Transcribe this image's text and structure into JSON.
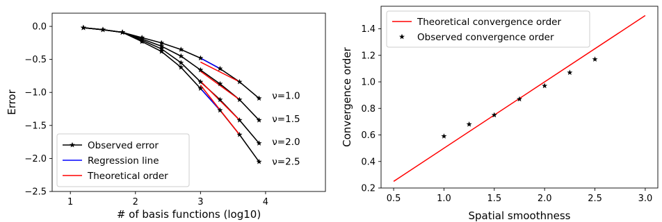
{
  "chart_data": [
    {
      "type": "line",
      "xlabel": "# of basis functions (log10)",
      "ylabel": "Error",
      "xlim": [
        0.72,
        4.92
      ],
      "ylim": [
        -2.5,
        0.2
      ],
      "xticks": [
        1,
        2,
        3,
        4
      ],
      "yticks": [
        0.0,
        -0.5,
        -1.0,
        -1.5,
        -2.0,
        -2.5
      ],
      "xtick_labels": [
        "1",
        "2",
        "3",
        "4"
      ],
      "ytick_labels": [
        "0.0",
        "−0.5",
        "−1.0",
        "−1.5",
        "−2.0",
        "−2.5"
      ],
      "grid": false,
      "legend_position": "lower-left",
      "legend": [
        "Observed error",
        "Regression line",
        "Theoretical order"
      ],
      "colors": {
        "observed": "#000000",
        "regression": "#0000ff",
        "theoretical": "#ff0000"
      },
      "observed": [
        {
          "label": "ν=1.0",
          "x": [
            1.2,
            1.5,
            1.8,
            2.1,
            2.4,
            2.7,
            3.0,
            3.3,
            3.6,
            3.9
          ],
          "y": [
            -0.02,
            -0.05,
            -0.09,
            -0.17,
            -0.25,
            -0.35,
            -0.48,
            -0.64,
            -0.84,
            -1.09
          ]
        },
        {
          "label": "ν=1.5",
          "x": [
            1.2,
            1.5,
            1.8,
            2.1,
            2.4,
            2.7,
            3.0,
            3.3,
            3.6,
            3.9
          ],
          "y": [
            -0.02,
            -0.05,
            -0.09,
            -0.19,
            -0.3,
            -0.45,
            -0.66,
            -0.87,
            -1.11,
            -1.42
          ]
        },
        {
          "label": "ν=2.0",
          "x": [
            1.2,
            1.5,
            1.8,
            2.1,
            2.4,
            2.7,
            3.0,
            3.3,
            3.6,
            3.9
          ],
          "y": [
            -0.02,
            -0.05,
            -0.09,
            -0.21,
            -0.34,
            -0.55,
            -0.84,
            -1.11,
            -1.42,
            -1.77
          ]
        },
        {
          "label": "ν=2.5",
          "x": [
            1.2,
            1.5,
            1.8,
            2.1,
            2.4,
            2.7,
            3.0,
            3.3,
            3.6,
            3.9
          ],
          "y": [
            -0.02,
            -0.05,
            -0.09,
            -0.23,
            -0.38,
            -0.62,
            -0.94,
            -1.27,
            -1.64,
            -2.05
          ]
        }
      ],
      "regression": [
        {
          "x": [
            3.0,
            3.3
          ],
          "y": [
            -0.48,
            -0.64
          ]
        },
        {
          "x": [
            3.0,
            3.3
          ],
          "y": [
            -0.94,
            -1.27
          ]
        }
      ],
      "theoretical": [
        {
          "x": [
            3.0,
            3.6
          ],
          "y": [
            -0.54,
            -0.84
          ]
        },
        {
          "x": [
            3.0,
            3.6
          ],
          "y": [
            -0.68,
            -1.11
          ]
        },
        {
          "x": [
            3.0,
            3.6
          ],
          "y": [
            -0.83,
            -1.42
          ]
        },
        {
          "x": [
            3.0,
            3.6
          ],
          "y": [
            -0.89,
            -1.64
          ]
        }
      ],
      "annotations": [
        {
          "text": "ν=1.0",
          "x": 4.1,
          "y": -1.05
        },
        {
          "text": "ν=1.5",
          "x": 4.1,
          "y": -1.4
        },
        {
          "text": "ν=2.0",
          "x": 4.1,
          "y": -1.75
        },
        {
          "text": "ν=2.5",
          "x": 4.1,
          "y": -2.05
        }
      ]
    },
    {
      "type": "scatter",
      "xlabel": "Spatial smoothness",
      "ylabel": "Convergence order",
      "xlim": [
        0.375,
        3.125
      ],
      "ylim": [
        0.2,
        1.57
      ],
      "xticks": [
        0.5,
        1.0,
        1.5,
        2.0,
        2.5,
        3.0
      ],
      "yticks": [
        0.2,
        0.4,
        0.6,
        0.8,
        1.0,
        1.2,
        1.4
      ],
      "xtick_labels": [
        "0.5",
        "1.0",
        "1.5",
        "2.0",
        "2.5",
        "3.0"
      ],
      "ytick_labels": [
        "0.2",
        "0.4",
        "0.6",
        "0.8",
        "1.0",
        "1.2",
        "1.4"
      ],
      "grid": false,
      "legend_position": "upper-left",
      "legend": [
        "Theoretical convergence order",
        "Observed convergence order"
      ],
      "colors": {
        "theoretical": "#ff0000",
        "observed": "#000000"
      },
      "theoretical_line": {
        "x": [
          0.5,
          3.0
        ],
        "y": [
          0.25,
          1.5
        ]
      },
      "observed_points": {
        "x": [
          1.0,
          1.25,
          1.5,
          1.75,
          2.0,
          2.25,
          2.5
        ],
        "y": [
          0.59,
          0.68,
          0.75,
          0.87,
          0.97,
          1.07,
          1.17
        ]
      }
    }
  ]
}
